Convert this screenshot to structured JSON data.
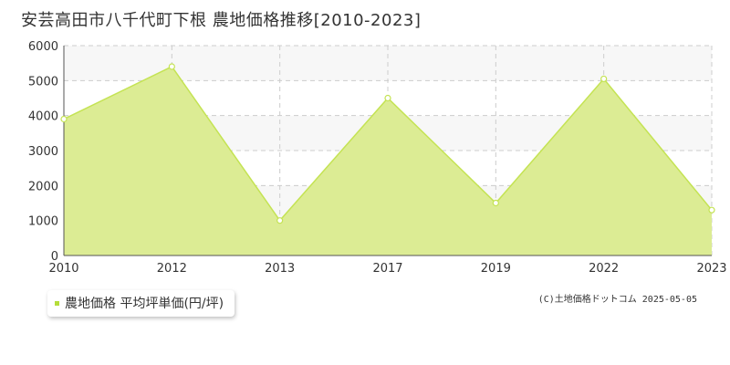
{
  "title": "安芸高田市八千代町下根 農地価格推移[2010-2023]",
  "legend": {
    "label": "農地価格 平均坪単価(円/坪)"
  },
  "credit": "(C)土地価格ドットコム 2025-05-05",
  "colors": {
    "area_fill": "#dcec94",
    "line": "#c4e353",
    "marker_fill": "#ffffff",
    "legend_swatch": "#b5dd3a",
    "grid": "#cccccc",
    "band": "#f7f7f7",
    "axis": "#555555"
  },
  "chart_data": {
    "type": "area",
    "categories": [
      "2010",
      "2012",
      "2013",
      "2017",
      "2019",
      "2022",
      "2023"
    ],
    "series": [
      {
        "name": "農地価格 平均坪単価(円/坪)",
        "values": [
          3900,
          5400,
          1000,
          4500,
          1500,
          5050,
          1300
        ]
      }
    ],
    "yticks": [
      "0",
      "1000",
      "2000",
      "3000",
      "4000",
      "5000",
      "6000"
    ],
    "ylim": [
      0,
      6000
    ],
    "grid": true,
    "legend_position": "bottom-left"
  }
}
